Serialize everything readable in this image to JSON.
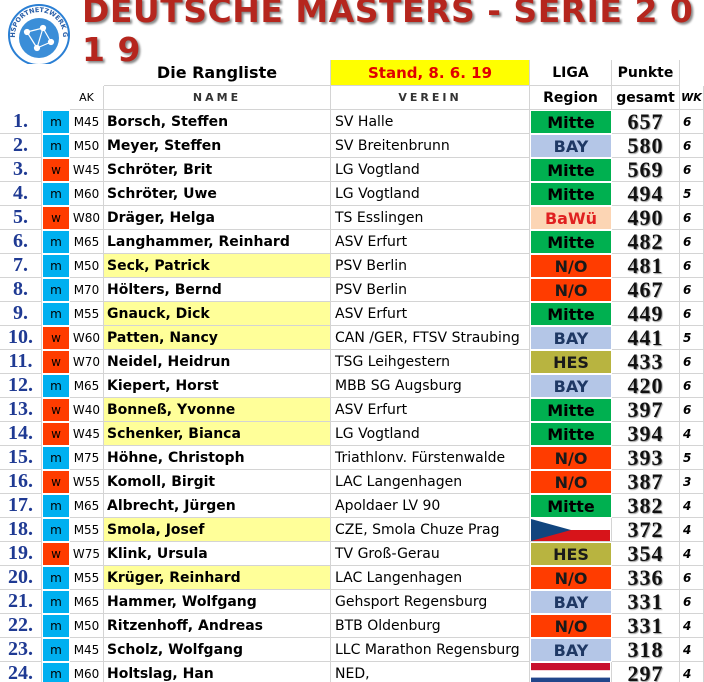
{
  "header": {
    "title": "DEUTSCHE MASTERS - SERIE 2 0 1 9",
    "logo_text": "GEHSPORTNETZWERK GSN",
    "subtitle": "Die Rangliste",
    "stand": "Stand, 8. 6. 19"
  },
  "table": {
    "columns": {
      "liga": "LIGA",
      "punkte": "Punkte",
      "ak": "AK",
      "name": "NAME",
      "verein": "VEREIN",
      "region": "Region",
      "gesamt": "gesamt",
      "wk": "WK"
    },
    "gender_colors": {
      "m": "#00b0f0",
      "w": "#ff3c00"
    },
    "region_styles": {
      "Mitte": {
        "bg": "#00b050",
        "fg": "#000000"
      },
      "BAY": {
        "bg": "#b4c6e7",
        "fg": "#1f3864"
      },
      "N/O": {
        "bg": "#ff3c00",
        "fg": "#1a1a1a"
      },
      "BaWü": {
        "bg": "#fcd5b4",
        "fg": "#e02020"
      },
      "HES": {
        "bg": "#b8b440",
        "fg": "#1a1a1a"
      }
    },
    "highlight_color": "#ffff99",
    "rows": [
      {
        "rank": "1.",
        "gender": "m",
        "ak": "M45",
        "name": "Borsch, Steffen",
        "verein": "SV Halle",
        "region": "Mitte",
        "points": 657,
        "wk": 6
      },
      {
        "rank": "2.",
        "gender": "m",
        "ak": "M50",
        "name": "Meyer, Steffen",
        "verein": "SV Breitenbrunn",
        "region": "BAY",
        "points": 580,
        "wk": 6
      },
      {
        "rank": "3.",
        "gender": "w",
        "ak": "W45",
        "name": "Schröter, Brit",
        "verein": "LG Vogtland",
        "region": "Mitte",
        "points": 569,
        "wk": 6
      },
      {
        "rank": "4.",
        "gender": "m",
        "ak": "M60",
        "name": "Schröter, Uwe",
        "verein": "LG Vogtland",
        "region": "Mitte",
        "points": 494,
        "wk": 5
      },
      {
        "rank": "5.",
        "gender": "w",
        "ak": "W80",
        "name": "Dräger, Helga",
        "verein": "TS Esslingen",
        "region": "BaWü",
        "points": 490,
        "wk": 6
      },
      {
        "rank": "6.",
        "gender": "m",
        "ak": "M65",
        "name": "Langhammer, Reinhard",
        "verein": "ASV Erfurt",
        "region": "Mitte",
        "points": 482,
        "wk": 6
      },
      {
        "rank": "7.",
        "gender": "m",
        "ak": "M50",
        "name": "Seck, Patrick",
        "verein": "PSV Berlin",
        "region": "N/O",
        "points": 481,
        "wk": 6,
        "highlight": true
      },
      {
        "rank": "8.",
        "gender": "m",
        "ak": "M70",
        "name": "Hölters, Bernd",
        "verein": "PSV Berlin",
        "region": "N/O",
        "points": 467,
        "wk": 6
      },
      {
        "rank": "9.",
        "gender": "m",
        "ak": "M55",
        "name": "Gnauck, Dick",
        "verein": "ASV Erfurt",
        "region": "Mitte",
        "points": 449,
        "wk": 6,
        "highlight": true
      },
      {
        "rank": "10.",
        "gender": "w",
        "ak": "W60",
        "name": "Patten, Nancy",
        "verein": "CAN /GER, FTSV Straubing",
        "region": "BAY",
        "points": 441,
        "wk": 5,
        "highlight": true
      },
      {
        "rank": "11.",
        "gender": "w",
        "ak": "W70",
        "name": "Neidel, Heidrun",
        "verein": "TSG Leihgestern",
        "region": "HES",
        "points": 433,
        "wk": 6
      },
      {
        "rank": "12.",
        "gender": "m",
        "ak": "M65",
        "name": "Kiepert, Horst",
        "verein": "MBB SG Augsburg",
        "region": "BAY",
        "points": 420,
        "wk": 6
      },
      {
        "rank": "13.",
        "gender": "w",
        "ak": "W40",
        "name": "Bonneß, Yvonne",
        "verein": "ASV Erfurt",
        "region": "Mitte",
        "points": 397,
        "wk": 6,
        "highlight": true
      },
      {
        "rank": "14.",
        "gender": "w",
        "ak": "W45",
        "name": "Schenker, Bianca",
        "verein": "LG Vogtland",
        "region": "Mitte",
        "points": 394,
        "wk": 4,
        "highlight": true
      },
      {
        "rank": "15.",
        "gender": "m",
        "ak": "M75",
        "name": "Höhne, Christoph",
        "verein": "Triathlonv. Fürstenwalde",
        "region": "N/O",
        "points": 393,
        "wk": 5
      },
      {
        "rank": "16.",
        "gender": "w",
        "ak": "W55",
        "name": "Komoll, Birgit",
        "verein": "LAC Langenhagen",
        "region": "N/O",
        "points": 387,
        "wk": 3
      },
      {
        "rank": "17.",
        "gender": "m",
        "ak": "M65",
        "name": "Albrecht, Jürgen",
        "verein": "Apoldaer LV 90",
        "region": "Mitte",
        "points": 382,
        "wk": 4
      },
      {
        "rank": "18.",
        "gender": "m",
        "ak": "M55",
        "name": "Smola, Josef",
        "verein": "CZE, Smola Chuze Prag",
        "region": null,
        "points": 372,
        "wk": 4,
        "highlight": true
      },
      {
        "rank": "19.",
        "gender": "w",
        "ak": "W75",
        "name": "Klink, Ursula",
        "verein": "TV Groß-Gerau",
        "region": "HES",
        "points": 354,
        "wk": 4
      },
      {
        "rank": "20.",
        "gender": "m",
        "ak": "M55",
        "name": "Krüger, Reinhard",
        "verein": "LAC Langenhagen",
        "region": "N/O",
        "points": 336,
        "wk": 6,
        "highlight": true
      },
      {
        "rank": "21.",
        "gender": "m",
        "ak": "M65",
        "name": "Hammer, Wolfgang",
        "verein": "Gehsport Regensburg",
        "region": "BAY",
        "points": 331,
        "wk": 6
      },
      {
        "rank": "22.",
        "gender": "m",
        "ak": "M50",
        "name": "Ritzenhoff, Andreas",
        "verein": "BTB Oldenburg",
        "region": "N/O",
        "points": 331,
        "wk": 4
      },
      {
        "rank": "23.",
        "gender": "m",
        "ak": "M45",
        "name": "Scholz, Wolfgang",
        "verein": "LLC Marathon Regensburg",
        "region": "BAY",
        "points": 318,
        "wk": 4
      },
      {
        "rank": "24.",
        "gender": "m",
        "ak": "M60",
        "name": "Holtslag, Han",
        "verein": "NED,",
        "region": null,
        "points": 297,
        "wk": 4
      }
    ]
  }
}
